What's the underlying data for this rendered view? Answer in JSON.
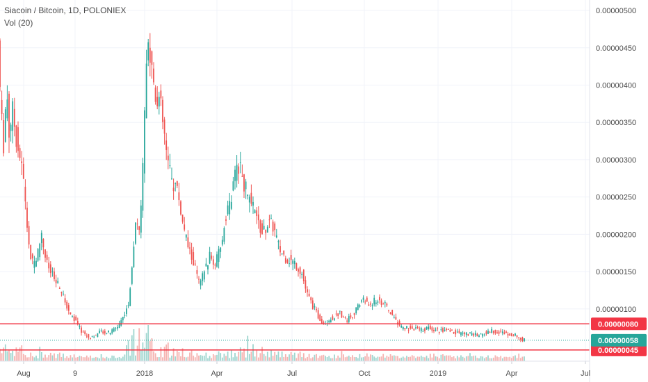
{
  "symbol_title": "Siacoin / Bitcoin, 1D, POLONIEX",
  "indicator_label": "Vol (20)",
  "chart_data": {
    "type": "candlestick",
    "title": "Siacoin / Bitcoin, 1D, POLONIEX",
    "x_tick_labels": [
      "Aug",
      "9",
      "2018",
      "Apr",
      "Jul",
      "Oct",
      "2019",
      "Apr",
      "Jul"
    ],
    "y_tick_labels": [
      "0.00000100",
      "0.00000150",
      "0.00000200",
      "0.00000250",
      "0.00000300",
      "0.00000350",
      "0.00000400",
      "0.00000450",
      "0.00000500"
    ],
    "ylim": [
      3e-07,
      5.14e-06
    ],
    "grid": true,
    "colors": {
      "up": "#26a69a",
      "down": "#ef5350",
      "volume_up": "#9fd6cf",
      "volume_down": "#f6b3b1",
      "level_line": "#f23645",
      "current_tag": "#26a69a"
    },
    "price_series": [
      {
        "t": 0,
        "p": 4.6e-06
      },
      {
        "t": 4,
        "p": 3.6e-06
      },
      {
        "t": 8,
        "p": 3.2e-06
      },
      {
        "t": 12,
        "p": 4e-06
      },
      {
        "t": 16,
        "p": 3.3e-06
      },
      {
        "t": 20,
        "p": 3.7e-06
      },
      {
        "t": 26,
        "p": 3.3e-06
      },
      {
        "t": 32,
        "p": 3e-06
      },
      {
        "t": 38,
        "p": 2.6e-06
      },
      {
        "t": 44,
        "p": 1.8e-06
      },
      {
        "t": 50,
        "p": 1.6e-06
      },
      {
        "t": 56,
        "p": 1.7e-06
      },
      {
        "t": 62,
        "p": 2e-06
      },
      {
        "t": 70,
        "p": 1.6e-06
      },
      {
        "t": 80,
        "p": 1.4e-06
      },
      {
        "t": 90,
        "p": 1.25e-06
      },
      {
        "t": 100,
        "p": 1e-06
      },
      {
        "t": 110,
        "p": 8.5e-07
      },
      {
        "t": 120,
        "p": 7e-07
      },
      {
        "t": 130,
        "p": 6.2e-07
      },
      {
        "t": 140,
        "p": 6.5e-07
      },
      {
        "t": 150,
        "p": 7e-07
      },
      {
        "t": 160,
        "p": 6.8e-07
      },
      {
        "t": 170,
        "p": 7.5e-07
      },
      {
        "t": 180,
        "p": 9e-07
      },
      {
        "t": 188,
        "p": 1.1e-06
      },
      {
        "t": 194,
        "p": 1.7e-06
      },
      {
        "t": 198,
        "p": 2.3e-06
      },
      {
        "t": 204,
        "p": 2e-06
      },
      {
        "t": 208,
        "p": 2.9e-06
      },
      {
        "t": 212,
        "p": 4e-06
      },
      {
        "t": 216,
        "p": 4.5e-06
      },
      {
        "t": 220,
        "p": 4.3e-06
      },
      {
        "t": 226,
        "p": 3.9e-06
      },
      {
        "t": 232,
        "p": 3.8e-06
      },
      {
        "t": 238,
        "p": 3.4e-06
      },
      {
        "t": 244,
        "p": 2.9e-06
      },
      {
        "t": 250,
        "p": 2.7e-06
      },
      {
        "t": 258,
        "p": 2.6e-06
      },
      {
        "t": 266,
        "p": 2.1e-06
      },
      {
        "t": 274,
        "p": 1.8e-06
      },
      {
        "t": 282,
        "p": 1.6e-06
      },
      {
        "t": 290,
        "p": 1.3e-06
      },
      {
        "t": 296,
        "p": 1.5e-06
      },
      {
        "t": 304,
        "p": 1.7e-06
      },
      {
        "t": 312,
        "p": 1.6e-06
      },
      {
        "t": 320,
        "p": 1.8e-06
      },
      {
        "t": 328,
        "p": 2.3e-06
      },
      {
        "t": 336,
        "p": 2.5e-06
      },
      {
        "t": 344,
        "p": 3e-06
      },
      {
        "t": 350,
        "p": 2.8e-06
      },
      {
        "t": 356,
        "p": 2.6e-06
      },
      {
        "t": 364,
        "p": 2.4e-06
      },
      {
        "t": 372,
        "p": 2.2e-06
      },
      {
        "t": 380,
        "p": 2e-06
      },
      {
        "t": 388,
        "p": 2.15e-06
      },
      {
        "t": 396,
        "p": 2.1e-06
      },
      {
        "t": 404,
        "p": 1.8e-06
      },
      {
        "t": 412,
        "p": 1.7e-06
      },
      {
        "t": 420,
        "p": 1.65e-06
      },
      {
        "t": 428,
        "p": 1.6e-06
      },
      {
        "t": 436,
        "p": 1.5e-06
      },
      {
        "t": 444,
        "p": 1.2e-06
      },
      {
        "t": 452,
        "p": 1.05e-06
      },
      {
        "t": 460,
        "p": 9e-07
      },
      {
        "t": 468,
        "p": 8.2e-07
      },
      {
        "t": 476,
        "p": 8.5e-07
      },
      {
        "t": 484,
        "p": 9e-07
      },
      {
        "t": 492,
        "p": 9.5e-07
      },
      {
        "t": 500,
        "p": 8.5e-07
      },
      {
        "t": 508,
        "p": 9e-07
      },
      {
        "t": 516,
        "p": 1e-06
      },
      {
        "t": 524,
        "p": 1.15e-06
      },
      {
        "t": 532,
        "p": 1.05e-06
      },
      {
        "t": 540,
        "p": 1.1e-06
      },
      {
        "t": 548,
        "p": 1.12e-06
      },
      {
        "t": 556,
        "p": 1.05e-06
      },
      {
        "t": 564,
        "p": 9.5e-07
      },
      {
        "t": 572,
        "p": 8.5e-07
      },
      {
        "t": 580,
        "p": 7.5e-07
      },
      {
        "t": 590,
        "p": 7.4e-07
      },
      {
        "t": 600,
        "p": 7.3e-07
      },
      {
        "t": 610,
        "p": 7.2e-07
      },
      {
        "t": 620,
        "p": 7.5e-07
      },
      {
        "t": 630,
        "p": 7.2e-07
      },
      {
        "t": 640,
        "p": 7.1e-07
      },
      {
        "t": 650,
        "p": 7e-07
      },
      {
        "t": 660,
        "p": 6.8e-07
      },
      {
        "t": 670,
        "p": 6.7e-07
      },
      {
        "t": 680,
        "p": 6.6e-07
      },
      {
        "t": 690,
        "p": 6.5e-07
      },
      {
        "t": 700,
        "p": 6.7e-07
      },
      {
        "t": 710,
        "p": 7.1e-07
      },
      {
        "t": 720,
        "p": 6.9e-07
      },
      {
        "t": 730,
        "p": 6.8e-07
      },
      {
        "t": 740,
        "p": 6.6e-07
      },
      {
        "t": 748,
        "p": 6.2e-07
      },
      {
        "t": 756,
        "p": 5.8e-07
      }
    ],
    "horizontal_levels": [
      {
        "value": 8e-07,
        "label": "0.00000080"
      },
      {
        "value": 4.5e-07,
        "label": "0.00000045"
      }
    ],
    "current_price": {
      "value": 5.8e-07,
      "label": "0.00000058"
    }
  }
}
